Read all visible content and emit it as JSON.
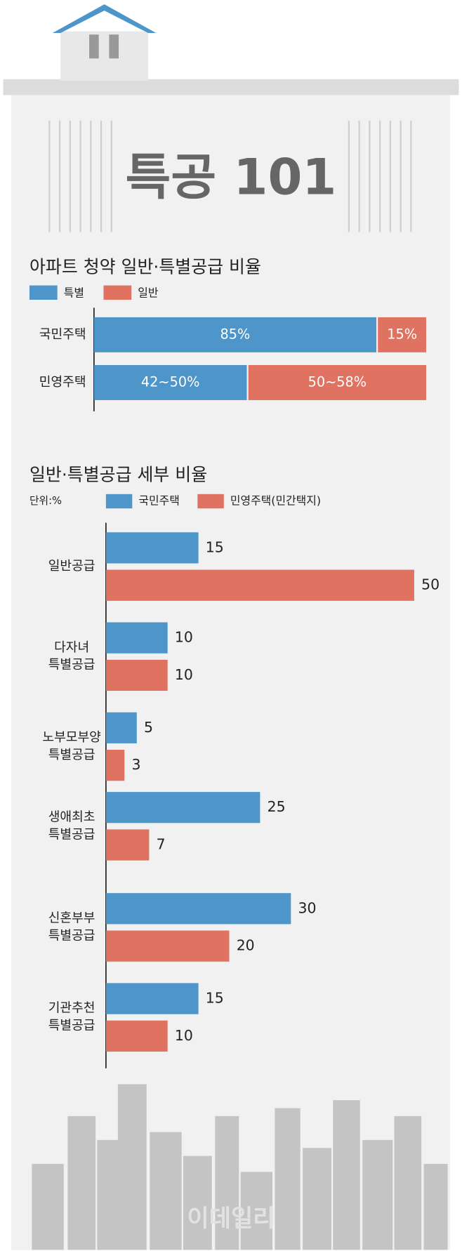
{
  "header": {
    "title": "특공 101",
    "watermark": "이데일리"
  },
  "chart_data": [
    {
      "type": "stacked-bar",
      "title": "아파트 청약 일반·특별공급 비율",
      "categories": [
        "국민주택",
        "민영주택"
      ],
      "series": [
        {
          "name": "특별",
          "color": "#4e96c9",
          "values": [
            85,
            46
          ],
          "value_labels": [
            "85%",
            "42~50%"
          ]
        },
        {
          "name": "일반",
          "color": "#e07262",
          "values": [
            15,
            54
          ],
          "value_labels": [
            "15%",
            "50~58%"
          ]
        }
      ],
      "xlim": [
        0,
        100
      ]
    },
    {
      "type": "grouped-bar",
      "title": "일반·특별공급 세부 비율",
      "unit": "단위:%",
      "categories": [
        [
          "일반공급"
        ],
        [
          "다자녀",
          "특별공급"
        ],
        [
          "노부모부양",
          "특별공급"
        ],
        [
          "생애최초",
          "특별공급"
        ],
        [
          "신혼부부",
          "특별공급"
        ],
        [
          "기관추천",
          "특별공급"
        ]
      ],
      "series": [
        {
          "name": "국민주택",
          "color": "#4e96c9",
          "values": [
            15,
            10,
            5,
            25,
            30,
            15
          ]
        },
        {
          "name": "민영주택(민간택지)",
          "color": "#e07262",
          "values": [
            50,
            10,
            3,
            7,
            20,
            10
          ]
        }
      ],
      "xlim": [
        0,
        50
      ]
    }
  ]
}
